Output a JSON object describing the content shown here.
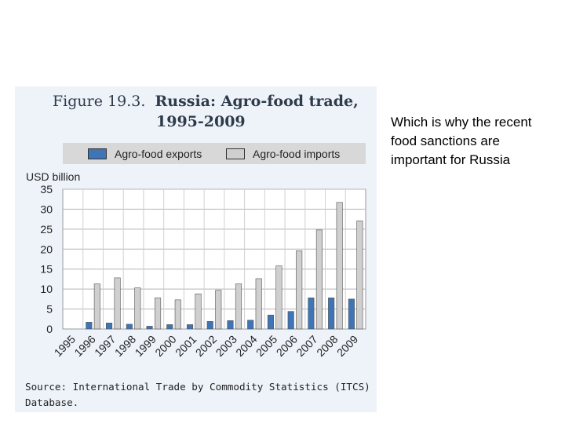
{
  "figure": {
    "title_prefix": "Figure 19.3.",
    "title_main": "Russia: Agro-food trade,",
    "title_line2": "1995-2009",
    "y_unit": "USD billion",
    "source": "Source: International Trade by Commodity Statistics (ITCS) Database."
  },
  "side_caption": "Which is why the recent food sanctions are important for Russia",
  "colors": {
    "exports": "#3f74b5",
    "imports": "#cfcfcf",
    "panel": "#eef3fa",
    "legend_bg": "#d8d8d8"
  },
  "chart_data": {
    "type": "bar",
    "title": "Russia: Agro-food trade, 1995-2009",
    "ylabel": "USD billion",
    "ylim": [
      0,
      35
    ],
    "yticks": [
      0,
      5,
      10,
      15,
      20,
      25,
      30,
      35
    ],
    "grid": true,
    "legend": "top",
    "categories": [
      "1995",
      "1996",
      "1997",
      "1998",
      "1999",
      "2000",
      "2001",
      "2002",
      "2003",
      "2004",
      "2005",
      "2006",
      "2007",
      "2008",
      "2009"
    ],
    "series": [
      {
        "name": "Agro-food exports",
        "values": [
          null,
          1.7,
          1.5,
          1.2,
          0.7,
          1.1,
          1.1,
          1.9,
          2.1,
          2.2,
          3.5,
          4.4,
          7.8,
          7.8,
          7.5
        ]
      },
      {
        "name": "Agro-food imports",
        "values": [
          null,
          11.3,
          12.8,
          10.3,
          7.8,
          7.3,
          8.8,
          9.7,
          11.3,
          12.6,
          15.8,
          19.6,
          24.8,
          31.7,
          27.1
        ]
      }
    ]
  }
}
